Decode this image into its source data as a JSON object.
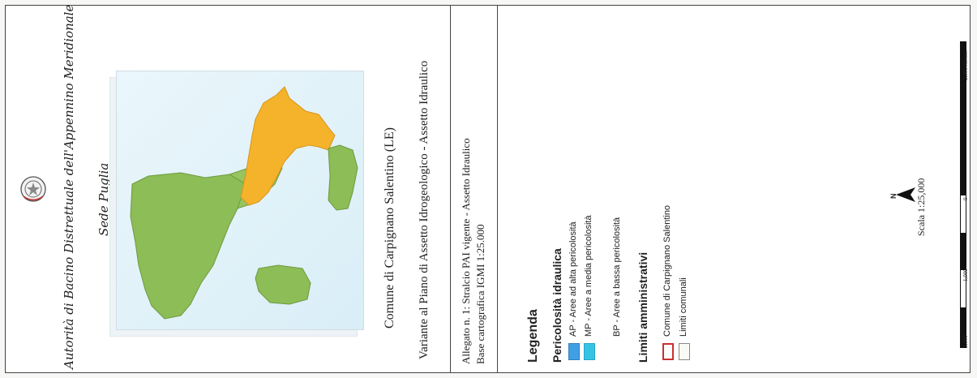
{
  "authority": {
    "name": "Autorità di Bacino Distrettuale dell'Appennino Meridionale",
    "seat": "Sede Puglia"
  },
  "title": {
    "comune": "Comune di Carpignano Salentino (LE)",
    "variante": "Variante al Piano di Assetto Idrogeologico - Assetto Idraulico"
  },
  "allegato": {
    "line1": "Allegato n. 1: Stralcio PAI vigente - Assetto Idraulico",
    "line2": "Base cartografica IGMI 1:25.000"
  },
  "legend": {
    "title": "Legenda",
    "group1_title": "Pericolosità idraulica",
    "group1_items": [
      {
        "label": "AP - Aree ad alta pericolosità",
        "color": "#3f9fe3"
      },
      {
        "label": "MP - Aree a media pericolosità",
        "color": "#35c4e6"
      },
      {
        "label": "BP - Aree a bassa pericolosità",
        "color": "#ffffff"
      }
    ],
    "group2_title": "Limiti amministrativi",
    "group2_items": [
      {
        "label": "Comune di Carpignano Salentino",
        "stroke": "#c9312f"
      },
      {
        "label": "Limiti comunali",
        "stroke": "#8a8a8a"
      }
    ]
  },
  "scale": {
    "north": "N",
    "text": "Scala  1:25,000",
    "ticks": [
      "2,000",
      "1,000",
      "0",
      "2,000 Meters"
    ]
  },
  "colors": {
    "land": "#8cbd56",
    "hazard_orange": "#f4b32a",
    "water": "#dff1f9"
  }
}
